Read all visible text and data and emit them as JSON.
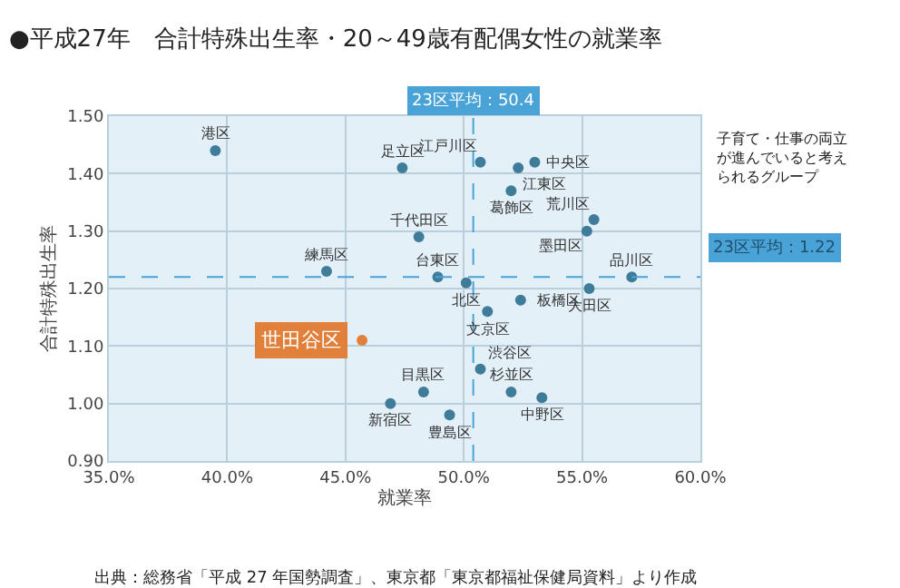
{
  "chart_data": {
    "type": "scatter",
    "title": "●平成27年　合計特殊出生率・20～49歳有配偶女性の就業率",
    "xlabel": "就業率",
    "ylabel": "合計特殊出生率",
    "series": [
      {
        "color": "#3f7c99",
        "x": [
          39.5,
          47.4,
          48.1,
          44.2,
          48.9,
          50.1,
          48.3,
          46.9,
          49.4,
          50.7,
          53.0,
          52.3,
          52.0,
          55.5,
          55.2,
          57.1,
          52.4,
          55.3,
          51.0,
          50.7,
          52.0,
          53.3
        ],
        "values": [
          1.44,
          1.41,
          1.29,
          1.23,
          1.22,
          1.21,
          1.02,
          1.0,
          0.98,
          1.42,
          1.42,
          1.41,
          1.37,
          1.32,
          1.3,
          1.22,
          1.18,
          1.2,
          1.16,
          1.06,
          1.02,
          1.01
        ]
      },
      {
        "color": "#e0803a",
        "x": [
          45.7
        ],
        "values": [
          1.11
        ]
      }
    ],
    "marker": "circle",
    "xlim": [
      35,
      60
    ],
    "ylim": [
      0.9,
      1.5
    ],
    "xticks": [
      {
        "value": 35,
        "label": "35.0%"
      },
      {
        "value": 40,
        "label": "40.0%"
      },
      {
        "value": 45,
        "label": "45.0%"
      },
      {
        "value": 50,
        "label": "50.0%"
      },
      {
        "value": 55,
        "label": "55.0%"
      },
      {
        "value": 60,
        "label": "60.0%"
      }
    ],
    "yticks": [
      {
        "value": 0.9,
        "label": "0.90"
      },
      {
        "value": 1.0,
        "label": "1.00"
      },
      {
        "value": 1.1,
        "label": "1.10"
      },
      {
        "value": 1.2,
        "label": "1.20"
      },
      {
        "value": 1.3,
        "label": "1.30"
      },
      {
        "value": 1.4,
        "label": "1.40"
      },
      {
        "value": 1.5,
        "label": "1.50"
      }
    ],
    "grid": true,
    "ref_lines": [
      {
        "axis": "x",
        "value": 50.4,
        "label": "23区平均：50.4",
        "color": "#4aa3d6",
        "line_style": "dashed"
      },
      {
        "axis": "y",
        "value": 1.22,
        "label": "23区平均：1.22",
        "color": "#4aa3d6",
        "line_style": "dashed"
      }
    ],
    "annotations": [
      {
        "text": "港区",
        "x": 39.5,
        "y": 1.44
      },
      {
        "text": "足立区",
        "x": 47.4,
        "y": 1.41
      },
      {
        "text": "千代田区",
        "x": 48.1,
        "y": 1.29
      },
      {
        "text": "練馬区",
        "x": 44.2,
        "y": 1.23
      },
      {
        "text": "台東区",
        "x": 48.9,
        "y": 1.22
      },
      {
        "text": "北区",
        "x": 50.1,
        "y": 1.21
      },
      {
        "text": "目黒区",
        "x": 48.3,
        "y": 1.02
      },
      {
        "text": "新宿区",
        "x": 46.9,
        "y": 1.0
      },
      {
        "text": "豊島区",
        "x": 49.4,
        "y": 0.98
      },
      {
        "text": "江戸川区",
        "x": 50.7,
        "y": 1.42
      },
      {
        "text": "中央区",
        "x": 53.0,
        "y": 1.42
      },
      {
        "text": "江東区",
        "x": 52.3,
        "y": 1.41
      },
      {
        "text": "葛飾区",
        "x": 52.0,
        "y": 1.37
      },
      {
        "text": "荒川区",
        "x": 55.5,
        "y": 1.32
      },
      {
        "text": "墨田区",
        "x": 55.2,
        "y": 1.3
      },
      {
        "text": "品川区",
        "x": 57.1,
        "y": 1.22
      },
      {
        "text": "板橋区",
        "x": 52.4,
        "y": 1.18
      },
      {
        "text": "大田区",
        "x": 55.3,
        "y": 1.2
      },
      {
        "text": "文京区",
        "x": 51.0,
        "y": 1.16
      },
      {
        "text": "渋谷区",
        "x": 50.7,
        "y": 1.06
      },
      {
        "text": "杉並区",
        "x": 52.0,
        "y": 1.02
      },
      {
        "text": "中野区",
        "x": 53.3,
        "y": 1.01
      },
      {
        "text": "世田谷区",
        "x": 45.7,
        "y": 1.11
      },
      "子育て・仕事の両立が進んでいると考えられるグループ",
      "出典：総務省「平成 27 年国勢調査」、東京都「東京都福祉保健局資料」より作成"
    ]
  }
}
